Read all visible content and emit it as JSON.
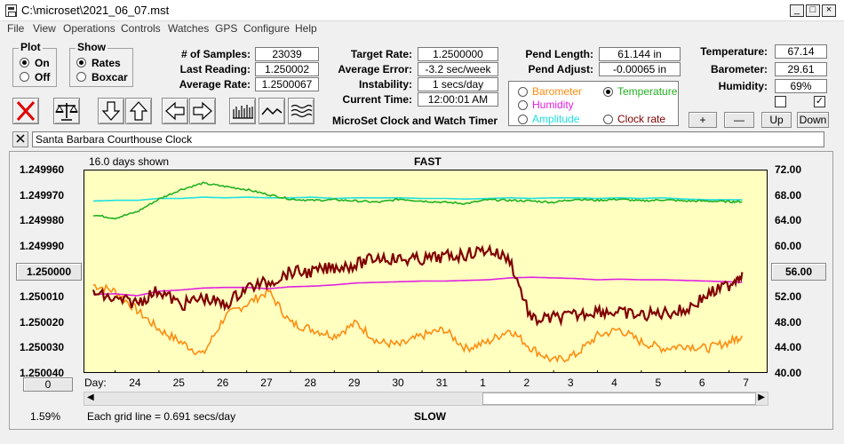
{
  "window": {
    "title": "C:\\microset\\2021_06_07.mst"
  },
  "menu": [
    "File",
    "View",
    "Operations",
    "Controls",
    "Watches",
    "GPS",
    "Configure",
    "Help"
  ],
  "plot_group": {
    "title": "Plot",
    "on": "On",
    "off": "Off",
    "selected": "On"
  },
  "show_group": {
    "title": "Show",
    "rates": "Rates",
    "boxcar": "Boxcar",
    "selected": "Rates"
  },
  "stats": {
    "samples_label": "# of Samples:",
    "samples": "23039",
    "last_label": "Last Reading:",
    "last": "1.250002",
    "avg_label": "Average Rate:",
    "avg": "1.2500067",
    "target_label": "Target Rate:",
    "target": "1.2500000",
    "error_label": "Average Error:",
    "error": "-3.2 sec/week",
    "instab_label": "Instability:",
    "instab": "1 secs/day",
    "time_label": "Current Time:",
    "time": "12:00:01 AM",
    "pendlen_label": "Pend Length:",
    "pendlen": "61.144 in",
    "pendadj_label": "Pend Adjust:",
    "pendadj": "-0.00065 in",
    "temp_label": "Temperature:",
    "temp": "67.14",
    "baro_label": "Barometer:",
    "baro": "29.61",
    "hum_label": "Humidity:",
    "hum": "69%"
  },
  "app_title": "MicroSet Clock and Watch Timer",
  "legend": {
    "barometer": "Barometer",
    "temperature": "Temperature",
    "humidity": "Humidity",
    "amplitude": "Amplitude",
    "clock_rate": "Clock rate",
    "selected": "Temperature"
  },
  "env_buttons": {
    "plus": "+",
    "minus": "—",
    "up": "Up",
    "down": "Down"
  },
  "env_checks": [
    false,
    true
  ],
  "clock_name": "Santa Barbara Courthouse Clock",
  "chart": {
    "days_shown": "16.0 days shown",
    "fast": "FAST",
    "slow": "SLOW",
    "grid_note": "Each grid line = 0.691 secs/day",
    "zoom_pct": "1.59%",
    "left_center_btn": "1.250000",
    "right_center_btn": "56.00",
    "bottom_btn": "0",
    "day_label": "Day:"
  },
  "colors": {
    "plot_bg": "#ffffc0",
    "clock_rate": "#800000",
    "temperature": "#22b022",
    "humidity": "#e020e0",
    "amplitude": "#20e0e0",
    "barometer": "#ff8c10"
  },
  "chart_data": {
    "type": "line",
    "title": "",
    "x_unit": "day of month",
    "x_ticks": [
      "24",
      "25",
      "26",
      "27",
      "28",
      "29",
      "30",
      "31",
      "1",
      "2",
      "3",
      "4",
      "5",
      "6",
      "7"
    ],
    "left_axis": {
      "ticks": [
        "1.249960",
        "1.249970",
        "1.249980",
        "1.249990",
        "1.250000",
        "1.250010",
        "1.250020",
        "1.250030",
        "1.250040"
      ],
      "ylim": [
        1.24996,
        1.25004
      ],
      "inverted": true
    },
    "right_axis": {
      "ticks": [
        "72.00",
        "68.00",
        "64.00",
        "60.00",
        "56.00",
        "52.00",
        "48.00",
        "44.00",
        "40.00"
      ],
      "ylim": [
        40,
        72
      ]
    },
    "x": [
      23.0,
      23.5,
      24.0,
      24.5,
      25.0,
      25.5,
      26.0,
      26.5,
      27.0,
      27.5,
      28.0,
      28.5,
      29.0,
      29.5,
      30.0,
      30.5,
      31.0,
      31.5,
      32.0,
      32.5,
      33.0,
      33.5,
      34.0,
      34.5,
      35.0,
      35.5,
      36.0,
      36.5,
      37.0,
      37.5,
      37.8
    ],
    "series": [
      {
        "name": "Clock rate",
        "axis": "left",
        "color": "#800000",
        "values": [
          1.250008,
          1.250011,
          1.250012,
          1.250007,
          1.250013,
          1.25001,
          1.250013,
          1.250006,
          1.250004,
          1.25,
          1.25,
          1.249998,
          1.249997,
          1.249994,
          1.249995,
          1.249995,
          1.249994,
          1.249993,
          1.249991,
          1.249995,
          1.250019,
          1.250018,
          1.250017,
          1.250015,
          1.250016,
          1.250017,
          1.250016,
          1.250015,
          1.250009,
          1.250005,
          1.25
        ]
      },
      {
        "name": "Temperature",
        "axis": "right",
        "color": "#22b022",
        "values": [
          65.0,
          64.5,
          65.5,
          67.5,
          69.0,
          70.0,
          69.5,
          69.0,
          68.2,
          67.5,
          67.3,
          67.4,
          67.2,
          67.0,
          67.5,
          67.2,
          67.0,
          66.8,
          67.4,
          67.3,
          67.2,
          67.0,
          67.5,
          67.3,
          67.5,
          67.2,
          67.4,
          67.2,
          67.2,
          67.1,
          67.1
        ]
      },
      {
        "name": "Amplitude",
        "axis": "right",
        "color": "#20e0e0",
        "values": [
          67.2,
          67.3,
          67.3,
          67.6,
          67.6,
          67.8,
          67.7,
          67.8,
          67.7,
          67.7,
          67.8,
          67.6,
          67.7,
          67.7,
          67.7,
          67.6,
          67.6,
          67.5,
          67.6,
          67.7,
          67.6,
          67.7,
          67.7,
          67.6,
          67.7,
          67.6,
          67.7,
          67.5,
          67.4,
          67.4,
          67.4
        ]
      },
      {
        "name": "Humidity",
        "axis": "right",
        "color": "#e020e0",
        "values": [
          52.5,
          52.6,
          52.3,
          53.0,
          53.2,
          53.5,
          53.6,
          53.6,
          53.4,
          53.7,
          53.8,
          54.0,
          54.3,
          54.4,
          54.5,
          54.6,
          54.6,
          54.7,
          54.8,
          55.1,
          55.2,
          55.1,
          55.0,
          54.8,
          54.9,
          54.8,
          54.8,
          54.7,
          54.6,
          54.5,
          54.4
        ]
      },
      {
        "name": "Barometer",
        "axis": "right",
        "color": "#ff8c10",
        "values": [
          54.0,
          53.0,
          50.0,
          47.0,
          45.0,
          43.0,
          49.0,
          51.0,
          53.0,
          48.0,
          47.0,
          46.0,
          48.0,
          45.0,
          44.5,
          46.0,
          47.0,
          44.0,
          45.0,
          47.0,
          44.0,
          42.0,
          43.0,
          46.0,
          47.0,
          45.0,
          44.0,
          44.5,
          44.0,
          45.0,
          46.0
        ]
      }
    ],
    "grid": false
  }
}
